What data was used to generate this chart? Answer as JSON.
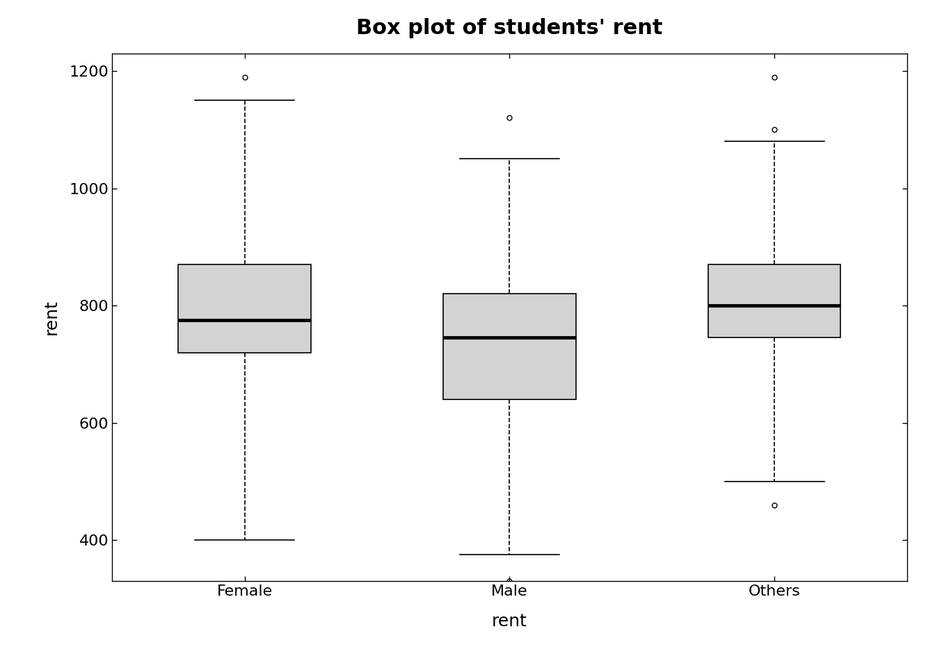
{
  "title": "Box plot of students' rent",
  "xlabel": "rent",
  "ylabel": "rent",
  "categories": [
    "Female",
    "Male",
    "Others"
  ],
  "boxes": [
    {
      "label": "Female",
      "q1": 720,
      "median": 775,
      "q3": 870,
      "whisker_low": 400,
      "whisker_high": 1150,
      "outliers": [
        1190
      ]
    },
    {
      "label": "Male",
      "q1": 640,
      "median": 745,
      "q3": 820,
      "whisker_low": 375,
      "whisker_high": 1050,
      "outliers": [
        330,
        1120
      ]
    },
    {
      "label": "Others",
      "q1": 745,
      "median": 800,
      "q3": 870,
      "whisker_low": 500,
      "whisker_high": 1080,
      "outliers": [
        460,
        1100,
        1190
      ]
    }
  ],
  "ylim": [
    330,
    1230
  ],
  "yticks": [
    400,
    600,
    800,
    1000,
    1200
  ],
  "box_color": "#d3d3d3",
  "median_color": "#000000",
  "whisker_color": "#000000",
  "outlier_color": "#000000",
  "background_color": "#ffffff",
  "title_fontsize": 22,
  "label_fontsize": 18,
  "tick_fontsize": 16,
  "box_width": 0.5,
  "linewidth": 1.2,
  "median_linewidth": 3.5
}
